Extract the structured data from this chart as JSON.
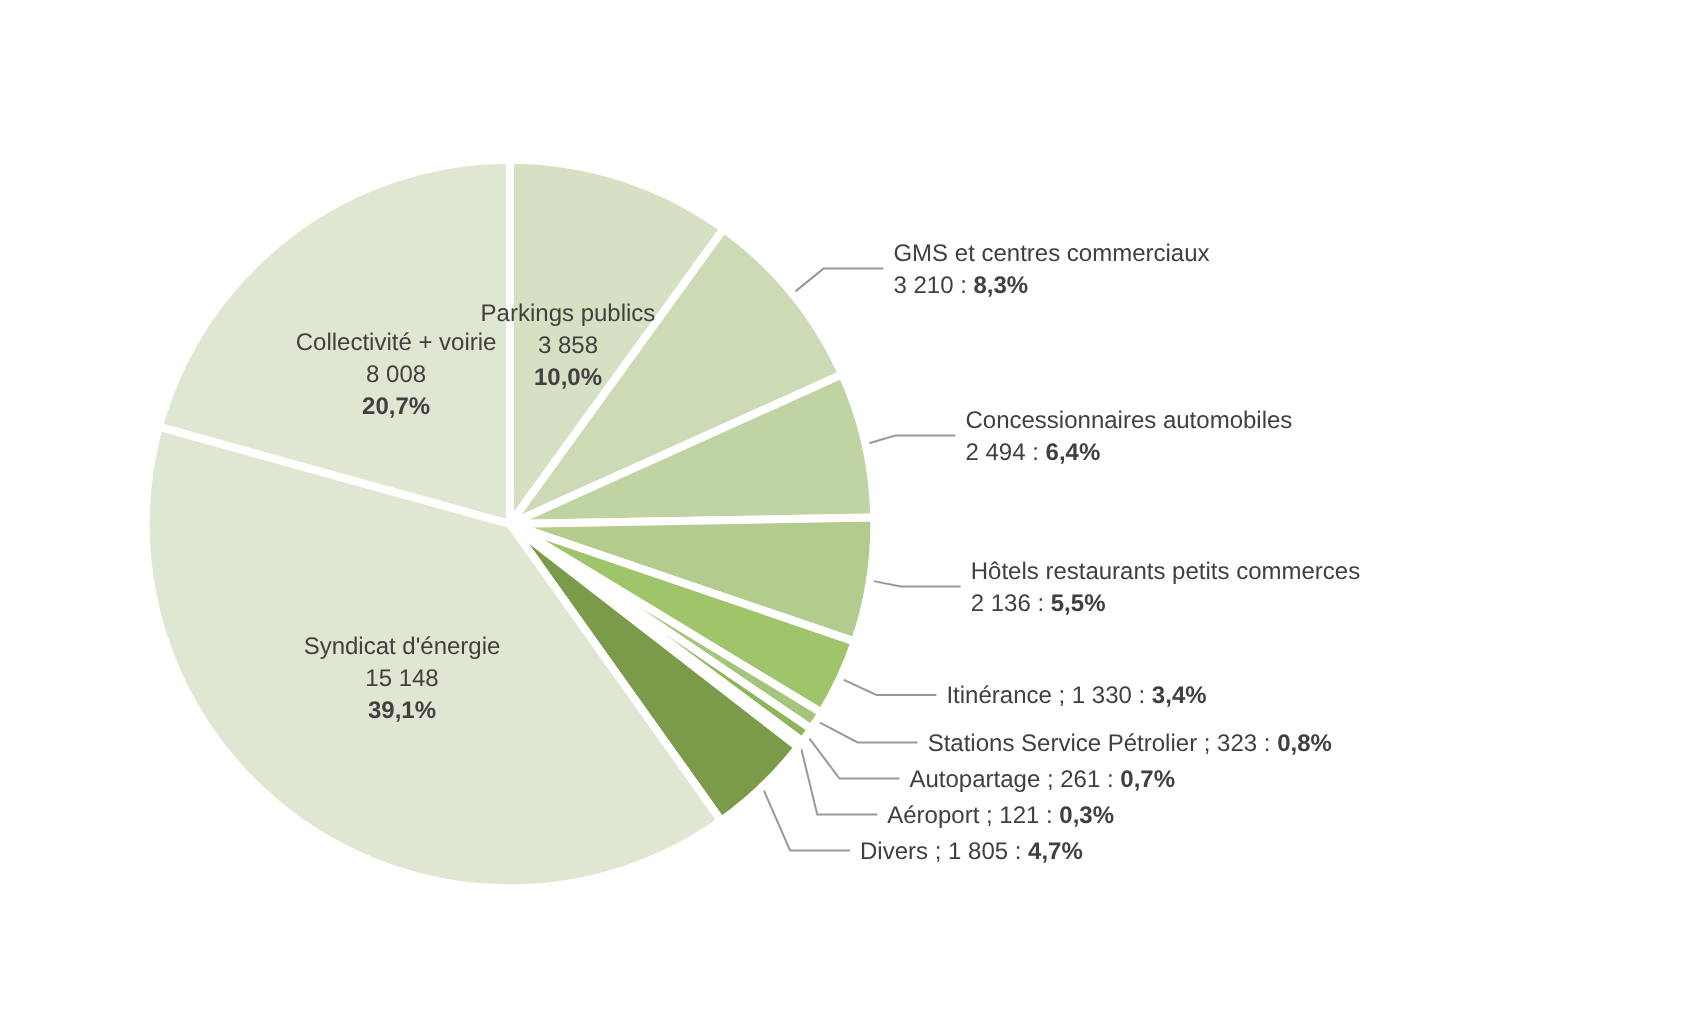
{
  "chart_data": {
    "type": "pie",
    "categories": [
      "Parkings publics",
      "GMS et centres commerciaux",
      "Concessionnaires automobiles",
      "Hôtels restaurants petits commerces",
      "Itinérance",
      "Stations Service Pétrolier",
      "Autopartage",
      "Aéroport",
      "Divers",
      "Syndicat d'énergie",
      "Collectivité + voirie"
    ],
    "values": [
      3858,
      3210,
      2494,
      2136,
      1330,
      323,
      261,
      121,
      1805,
      15148,
      8008
    ],
    "value_labels": [
      "3 858\n10,0%",
      "3 210 : 8,3%",
      "2 494 : 6,4%",
      "2 136 : 5,5%",
      "; 1 330 : 3,4%",
      "; 323 : 0,8%",
      "; 261 : 0,7%",
      "; 121 : 0,3%",
      "; 1 805 : 4,7%",
      "15 148\n39,1%",
      "8 008\n20,7%"
    ],
    "colors": [
      "#d5e1c2",
      "#ccdbb5",
      "#c0d4a3",
      "#b3cc8d",
      "#9fc46a",
      "#a6c57c",
      "#8fb55c",
      "#86a852",
      "#7b9a4a",
      "#dfe7d2",
      "#dfe7d2"
    ],
    "legend": false
  }
}
